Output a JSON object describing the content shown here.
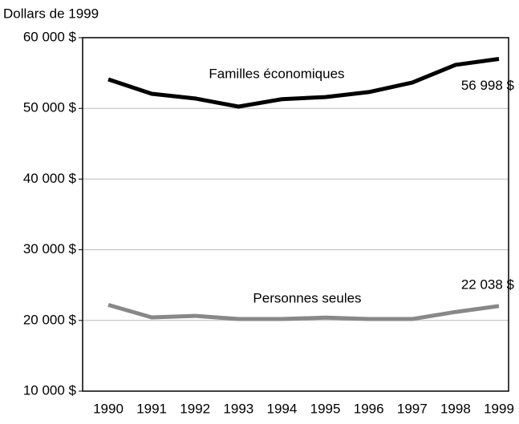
{
  "chart_data": {
    "type": "line",
    "y_axis_label": "Dollars de 1999",
    "categories": [
      "1990",
      "1991",
      "1992",
      "1993",
      "1994",
      "1995",
      "1996",
      "1997",
      "1998",
      "1999"
    ],
    "series": [
      {
        "name": "Familles économiques",
        "color": "#000000",
        "values": [
          54100,
          52060,
          51400,
          50250,
          51300,
          51600,
          52300,
          53650,
          56150,
          56998
        ],
        "value_labels": [
          null,
          null,
          null,
          null,
          null,
          null,
          null,
          null,
          null,
          "56 998 $"
        ]
      },
      {
        "name": "Personnes seules",
        "color": "#888888",
        "values": [
          22200,
          20430,
          20650,
          20200,
          20200,
          20400,
          20200,
          20200,
          21200,
          22038
        ],
        "value_labels": [
          null,
          null,
          null,
          null,
          null,
          null,
          null,
          null,
          null,
          "22 038 $"
        ]
      }
    ],
    "ylim": [
      10000,
      60000
    ],
    "yticks": [
      {
        "value": 10000,
        "label": "10 000 $"
      },
      {
        "value": 20000,
        "label": "20 000 $"
      },
      {
        "value": 30000,
        "label": "30 000 $"
      },
      {
        "value": 40000,
        "label": "40 000 $"
      },
      {
        "value": 50000,
        "label": "50 000 $"
      },
      {
        "value": 60000,
        "label": "60 000 $"
      }
    ],
    "grid": true
  }
}
